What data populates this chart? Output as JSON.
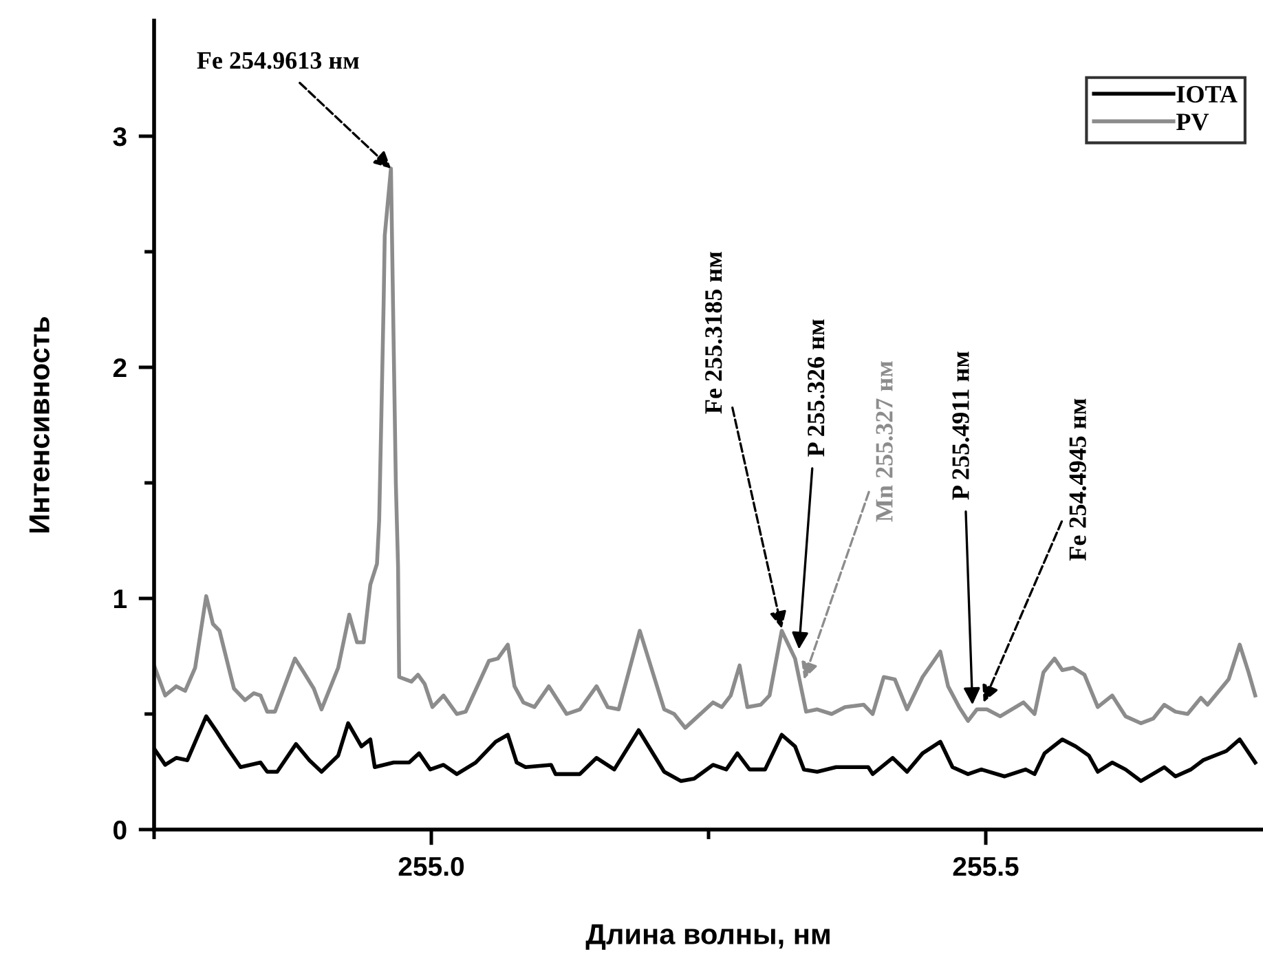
{
  "chart_data": {
    "type": "line",
    "xlabel": "Длина волны, нм",
    "ylabel": "Интенсивность",
    "xlim": [
      254.75,
      255.75
    ],
    "ylim": [
      0,
      3.5
    ],
    "xticks": [
      {
        "value": 254.75,
        "label": null
      },
      {
        "value": 255.0,
        "label": "255.0"
      },
      {
        "value": 255.25,
        "label": null
      },
      255.5
    ],
    "yticks": [
      0,
      {
        "value": 0.5,
        "label": null
      },
      1,
      {
        "value": 1.5,
        "label": null
      },
      2,
      {
        "value": 2.5,
        "label": null
      },
      3
    ],
    "grid": false,
    "legend": "top right",
    "marker": "none",
    "line_style": "solid",
    "series": [
      {
        "name": "IOTA",
        "color": "#000000",
        "x": [
          254.75,
          254.76,
          254.77,
          254.78,
          254.797,
          254.807,
          254.815,
          254.828,
          254.846,
          254.852,
          254.861,
          254.878,
          254.89,
          254.901,
          254.916,
          254.925,
          254.937,
          254.945,
          254.949,
          254.966,
          254.98,
          254.989,
          254.999,
          255.011,
          255.023,
          255.04,
          255.058,
          255.069,
          255.077,
          255.085,
          255.108,
          255.112,
          255.134,
          255.149,
          255.165,
          255.187,
          255.21,
          255.225,
          255.237,
          255.254,
          255.266,
          255.276,
          255.287,
          255.301,
          255.316,
          255.328,
          255.336,
          255.348,
          255.365,
          255.394,
          255.398,
          255.416,
          255.429,
          255.443,
          255.459,
          255.47,
          255.484,
          255.496,
          255.517,
          255.536,
          255.544,
          255.553,
          255.569,
          255.581,
          255.593,
          255.601,
          255.614,
          255.626,
          255.64,
          255.661,
          255.671,
          255.685,
          255.696,
          255.717,
          255.729,
          255.743
        ],
        "values": [
          0.35,
          0.28,
          0.31,
          0.3,
          0.49,
          0.42,
          0.36,
          0.27,
          0.29,
          0.25,
          0.25,
          0.37,
          0.3,
          0.25,
          0.32,
          0.46,
          0.36,
          0.39,
          0.27,
          0.29,
          0.29,
          0.33,
          0.26,
          0.28,
          0.24,
          0.29,
          0.38,
          0.41,
          0.29,
          0.27,
          0.28,
          0.24,
          0.24,
          0.31,
          0.26,
          0.43,
          0.25,
          0.21,
          0.22,
          0.28,
          0.26,
          0.33,
          0.26,
          0.26,
          0.41,
          0.36,
          0.26,
          0.25,
          0.27,
          0.27,
          0.24,
          0.31,
          0.25,
          0.33,
          0.38,
          0.27,
          0.24,
          0.26,
          0.23,
          0.26,
          0.24,
          0.33,
          0.39,
          0.36,
          0.32,
          0.25,
          0.29,
          0.26,
          0.21,
          0.27,
          0.23,
          0.26,
          0.3,
          0.34,
          0.39,
          0.29
        ]
      },
      {
        "name": "PV",
        "color": "#8c8c8c",
        "x": [
          254.75,
          254.76,
          254.77,
          254.778,
          254.787,
          254.797,
          254.803,
          254.809,
          254.822,
          254.832,
          254.84,
          254.846,
          254.852,
          254.859,
          254.877,
          254.885,
          254.894,
          254.901,
          254.916,
          254.926,
          254.933,
          254.939,
          254.945,
          254.951,
          254.953,
          254.955,
          254.957,
          254.958,
          254.9636,
          254.966,
          254.968,
          254.97,
          254.971,
          254.982,
          254.988,
          254.994,
          255.001,
          255.011,
          255.023,
          255.031,
          255.052,
          255.06,
          255.069,
          255.075,
          255.083,
          255.093,
          255.106,
          255.122,
          255.134,
          255.149,
          255.159,
          255.169,
          255.188,
          255.21,
          255.219,
          255.229,
          255.254,
          255.262,
          255.27,
          255.278,
          255.285,
          255.297,
          255.305,
          255.316,
          255.328,
          255.338,
          255.348,
          255.361,
          255.373,
          255.39,
          255.398,
          255.408,
          255.418,
          255.429,
          255.443,
          255.459,
          255.466,
          255.476,
          255.484,
          255.492,
          255.501,
          255.513,
          255.534,
          255.544,
          255.552,
          255.562,
          255.569,
          255.579,
          255.589,
          255.601,
          255.614,
          255.626,
          255.64,
          255.651,
          255.661,
          255.671,
          255.682,
          255.694,
          255.7,
          255.719,
          255.729,
          255.737,
          255.743
        ],
        "values": [
          0.71,
          0.58,
          0.62,
          0.6,
          0.7,
          1.01,
          0.89,
          0.86,
          0.61,
          0.56,
          0.59,
          0.58,
          0.51,
          0.51,
          0.74,
          0.68,
          0.61,
          0.52,
          0.7,
          0.93,
          0.81,
          0.81,
          1.06,
          1.15,
          1.34,
          1.8,
          2.28,
          2.57,
          2.86,
          2.11,
          1.5,
          1.14,
          0.66,
          0.64,
          0.67,
          0.63,
          0.53,
          0.58,
          0.5,
          0.51,
          0.73,
          0.74,
          0.8,
          0.62,
          0.55,
          0.53,
          0.62,
          0.5,
          0.52,
          0.62,
          0.53,
          0.52,
          0.86,
          0.52,
          0.5,
          0.44,
          0.55,
          0.53,
          0.58,
          0.71,
          0.53,
          0.54,
          0.58,
          0.86,
          0.74,
          0.51,
          0.52,
          0.5,
          0.53,
          0.54,
          0.5,
          0.66,
          0.65,
          0.52,
          0.66,
          0.77,
          0.62,
          0.53,
          0.47,
          0.52,
          0.52,
          0.49,
          0.55,
          0.5,
          0.68,
          0.74,
          0.69,
          0.7,
          0.67,
          0.53,
          0.58,
          0.49,
          0.46,
          0.48,
          0.54,
          0.51,
          0.5,
          0.57,
          0.54,
          0.65,
          0.8,
          0.68,
          0.58
        ]
      }
    ],
    "annotations": [
      {
        "text": "Fe 254.9613 нм",
        "x": 254.9636,
        "y": 2.86
      },
      {
        "text": "Fe 255.3185 нм",
        "x": 255.316,
        "y": 0.87
      },
      {
        "text": "P 255.326 нм",
        "x": 255.3315,
        "y": 0.78
      },
      {
        "text": "Mn 255.327 нм",
        "x": 255.336,
        "y": 0.65
      },
      {
        "text": "P 255.4911 нм",
        "x": 255.488,
        "y": 0.54
      },
      {
        "text": "Fe 254.4945 нм",
        "x": 255.498,
        "y": 0.55
      }
    ]
  }
}
